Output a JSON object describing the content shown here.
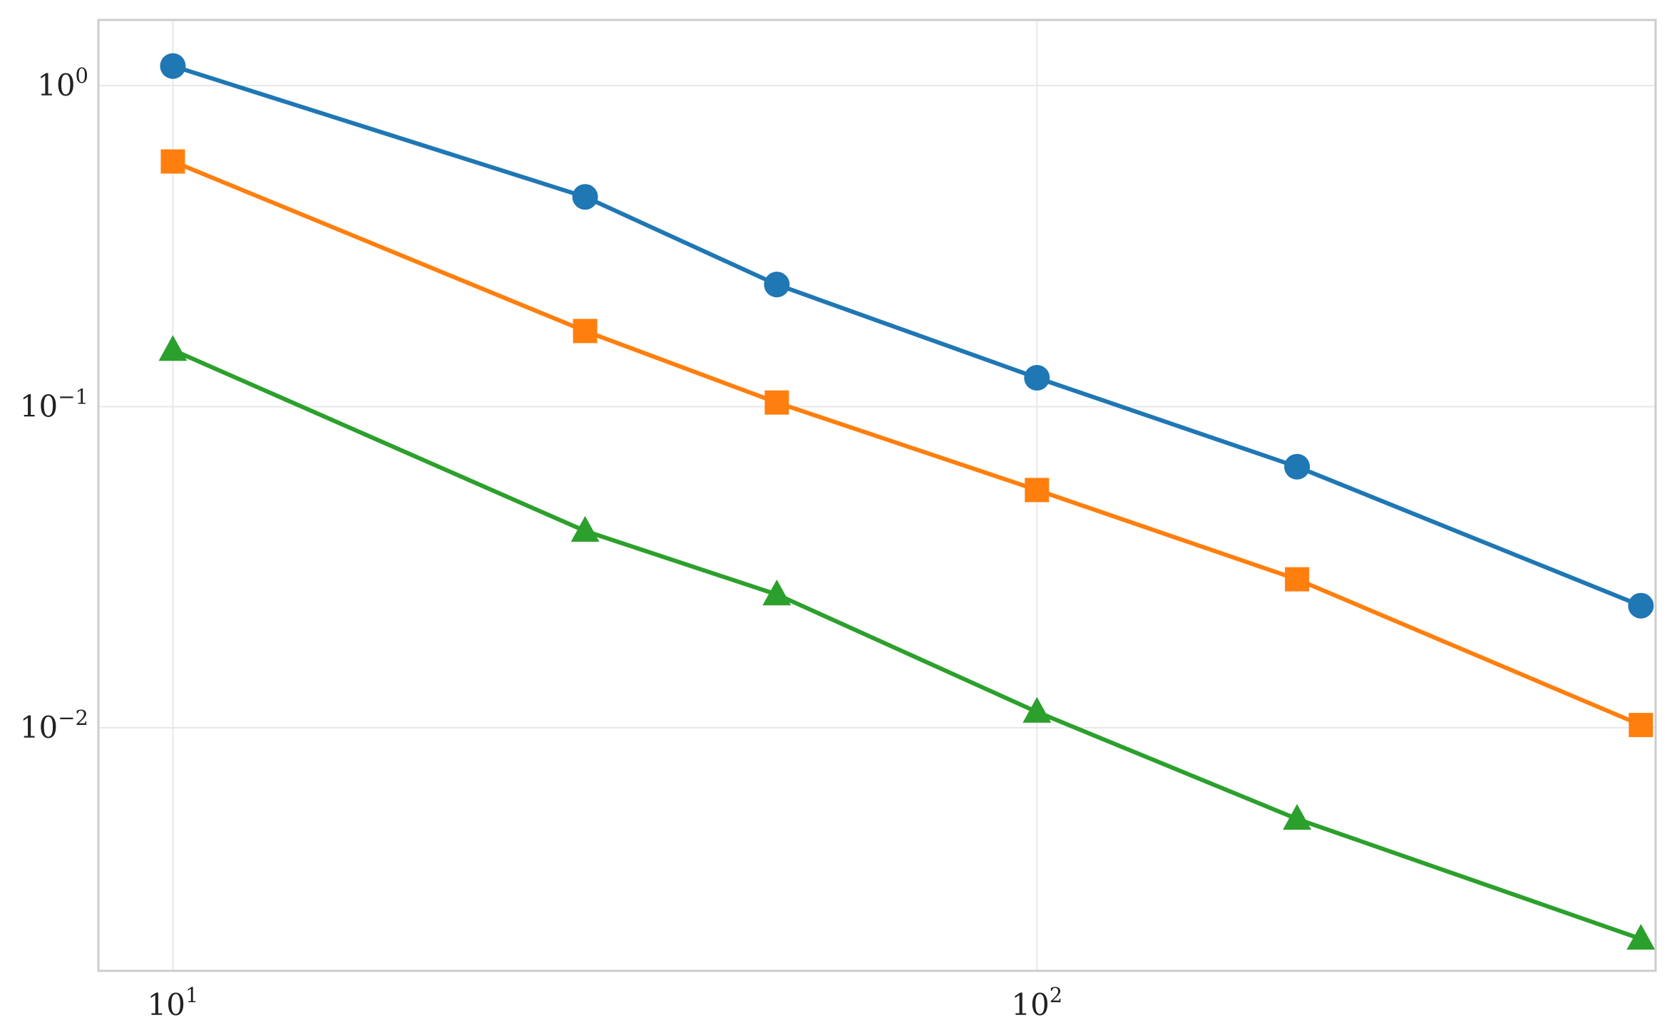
{
  "chart_data": {
    "type": "line",
    "title": "",
    "xlabel": "",
    "ylabel": "",
    "x_scale": "log",
    "y_scale": "log",
    "xlim": [
      8.2,
      520
    ],
    "ylim": [
      0.00175,
      1.6
    ],
    "grid": true,
    "legend": "none",
    "x_ticks": [
      {
        "value": 10,
        "base": "10",
        "exp": "1"
      },
      {
        "value": 100,
        "base": "10",
        "exp": "2"
      }
    ],
    "y_ticks": [
      {
        "value": 1,
        "base": "10",
        "exp": "0"
      },
      {
        "value": 0.1,
        "base": "10",
        "exp": "−1"
      },
      {
        "value": 0.01,
        "base": "10",
        "exp": "−2"
      }
    ],
    "x": [
      10,
      30,
      50,
      100,
      200,
      500
    ],
    "series": [
      {
        "values": [
          1.15,
          0.45,
          0.24,
          0.123,
          0.065,
          0.024
        ],
        "color": "#1f77b4",
        "marker": "circle"
      },
      {
        "values": [
          0.58,
          0.172,
          0.103,
          0.055,
          0.029,
          0.0102
        ],
        "color": "#ff7f0e",
        "marker": "square"
      },
      {
        "values": [
          0.15,
          0.041,
          0.026,
          0.0112,
          0.0052,
          0.0022
        ],
        "color": "#2ca02c",
        "marker": "triangle"
      }
    ]
  }
}
